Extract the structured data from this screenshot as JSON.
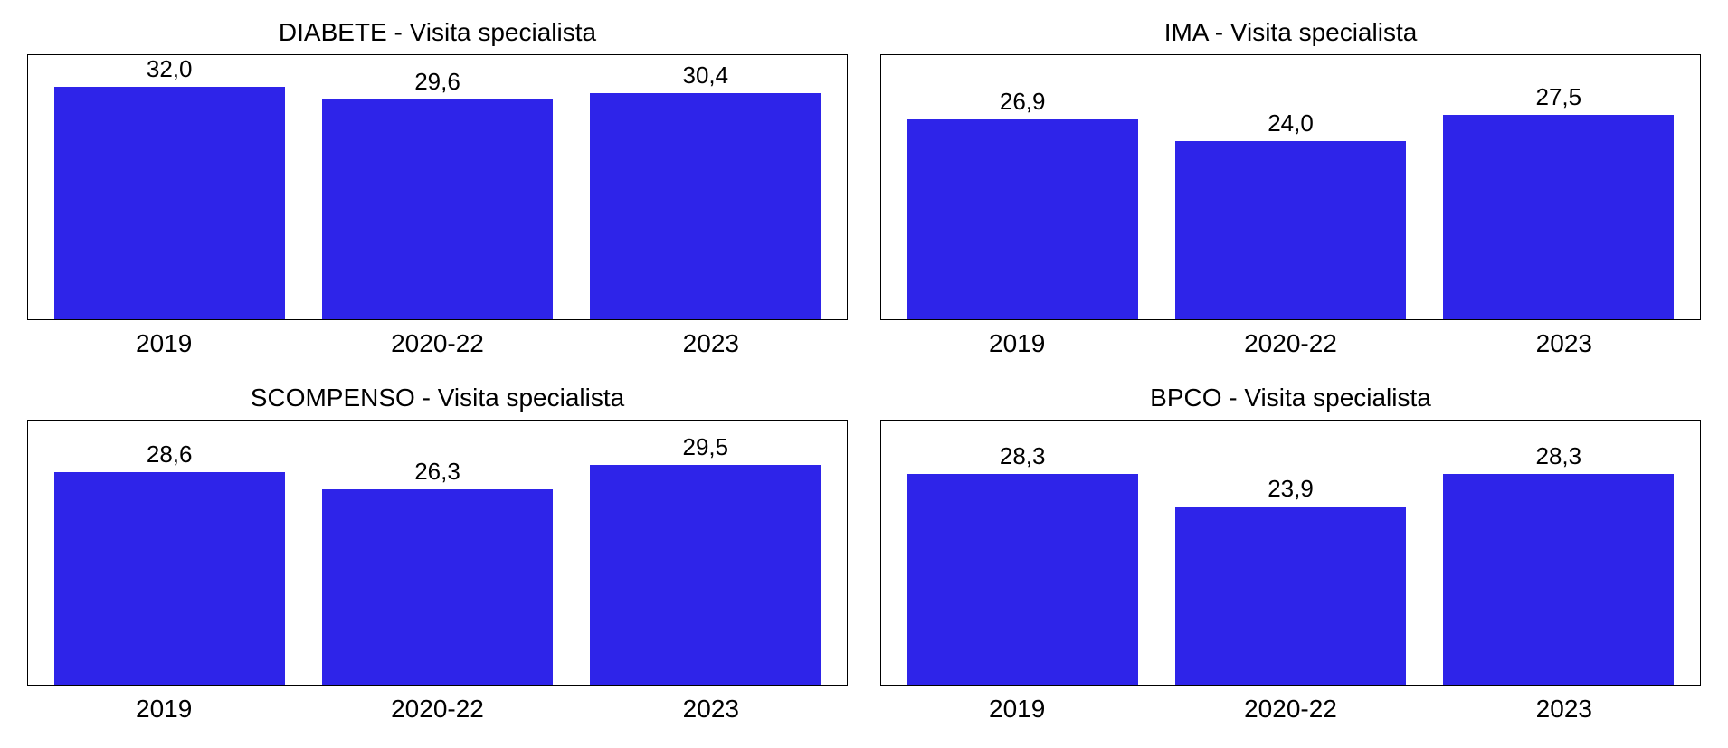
{
  "layout": {
    "rows": 2,
    "cols": 2,
    "background_color": "#ffffff"
  },
  "y_max": 35.5,
  "bar_color": "#2e24e9",
  "border_color": "#000000",
  "title_fontsize": 28,
  "value_label_fontsize": 26,
  "tick_fontsize": 28,
  "categories": [
    "2019",
    "2020-22",
    "2023"
  ],
  "panels": [
    {
      "title": "DIABETE - Visita specialista",
      "values": [
        32.0,
        29.6,
        30.4
      ],
      "labels": [
        "32,0",
        "29,6",
        "30,4"
      ]
    },
    {
      "title": "IMA - Visita specialista",
      "values": [
        26.9,
        24.0,
        27.5
      ],
      "labels": [
        "26,9",
        "24,0",
        "27,5"
      ]
    },
    {
      "title": "SCOMPENSO - Visita specialista",
      "values": [
        28.6,
        26.3,
        29.5
      ],
      "labels": [
        "28,6",
        "26,3",
        "29,5"
      ]
    },
    {
      "title": "BPCO - Visita specialista",
      "values": [
        28.3,
        23.9,
        28.3
      ],
      "labels": [
        "28,3",
        "23,9",
        "28,3"
      ]
    }
  ]
}
